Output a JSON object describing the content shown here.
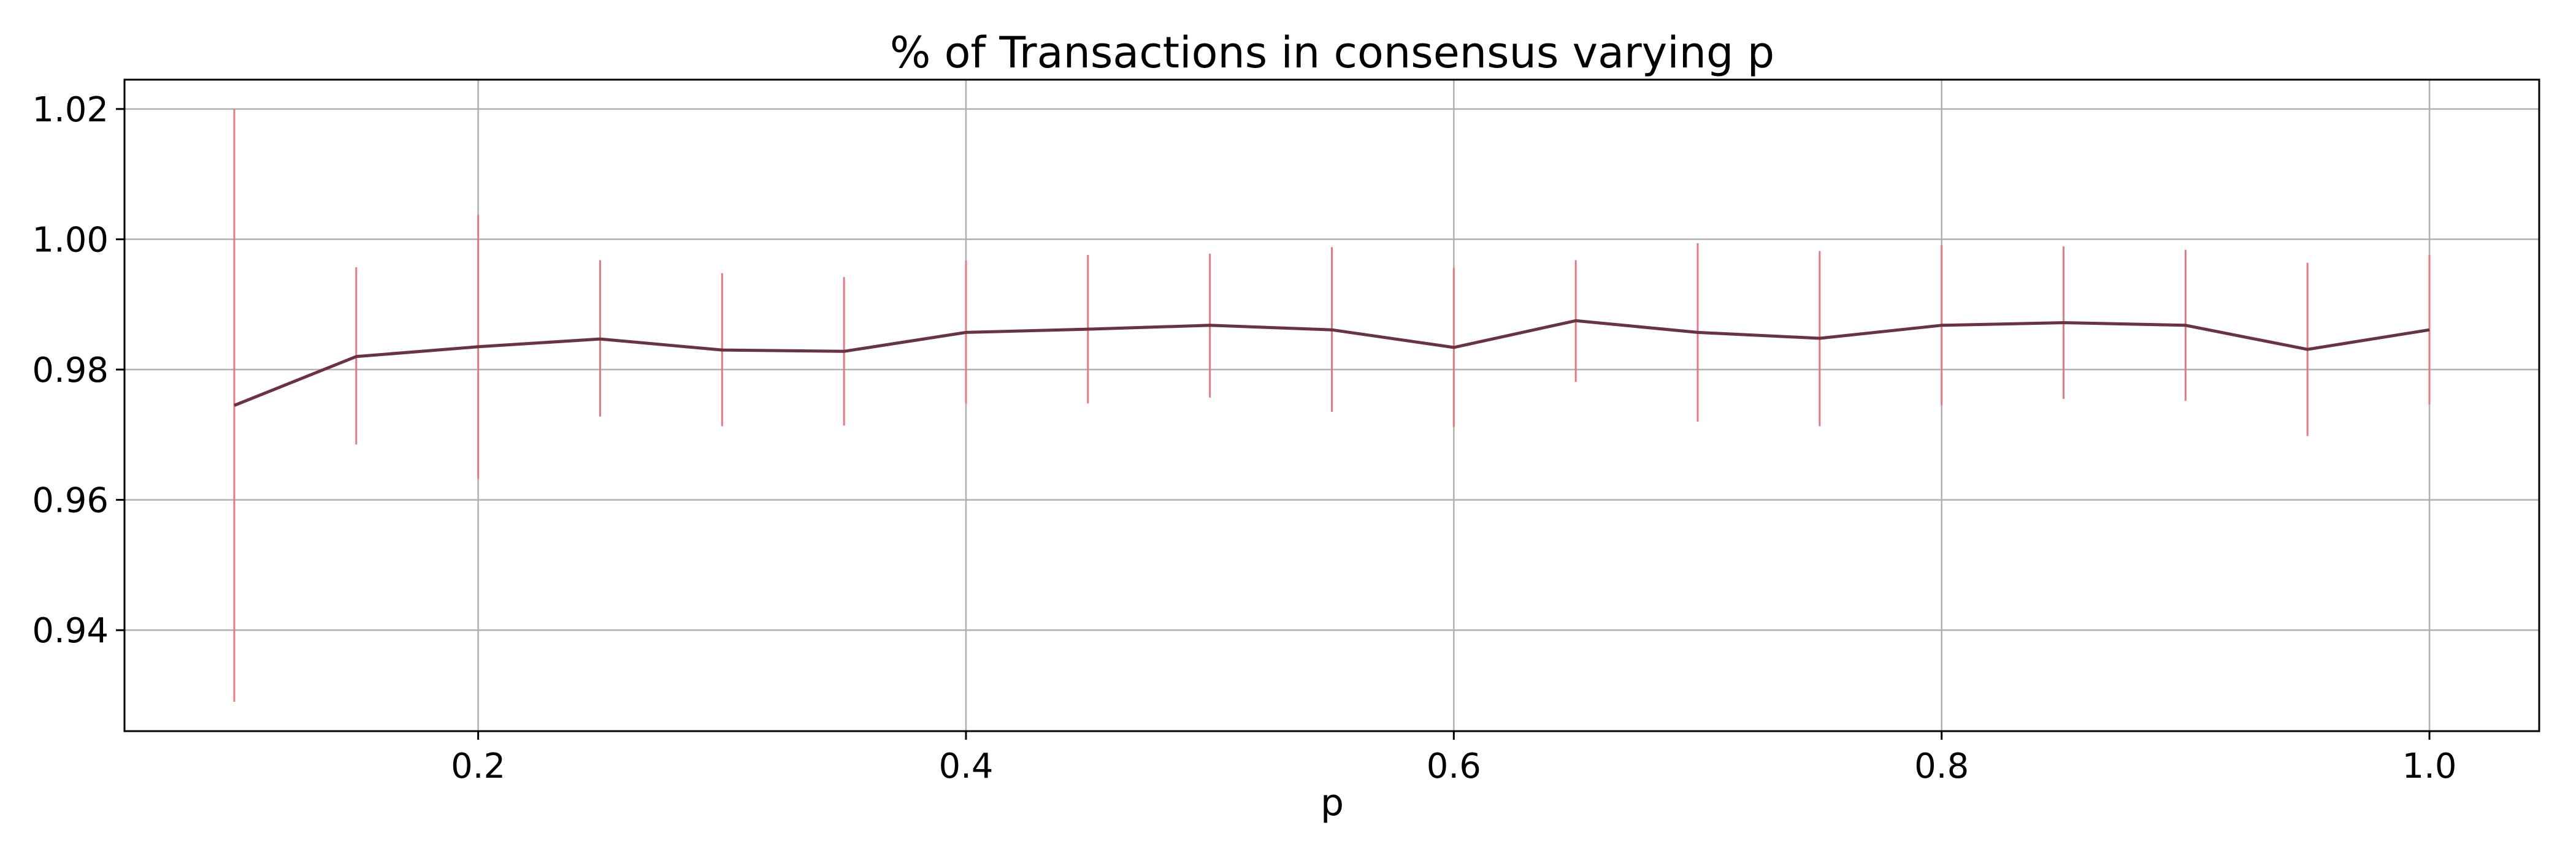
{
  "chart_data": {
    "type": "line",
    "title": "% of Transactions in consensus varying p",
    "xlabel": "p",
    "ylabel": "",
    "xlim": [
      0.055,
      1.045
    ],
    "ylim": [
      0.9245,
      1.0245
    ],
    "xticks": [
      0.2,
      0.4,
      0.6,
      0.8,
      1.0
    ],
    "xtick_labels": [
      "0.2",
      "0.4",
      "0.6",
      "0.8",
      "1.0"
    ],
    "yticks": [
      0.94,
      0.96,
      0.98,
      1.0,
      1.02
    ],
    "ytick_labels": [
      "0.94",
      "0.96",
      "0.98",
      "1.00",
      "1.02"
    ],
    "grid": true,
    "line_color": "#6b3246",
    "errorbar_color": "#e07b83",
    "series": [
      {
        "x": [
          0.1,
          0.15,
          0.2,
          0.25,
          0.3,
          0.35,
          0.4,
          0.45,
          0.5,
          0.55,
          0.6,
          0.65,
          0.7,
          0.75,
          0.8,
          0.85,
          0.9,
          0.95,
          1.0
        ],
        "y": [
          0.9745,
          0.982,
          0.9835,
          0.9847,
          0.983,
          0.9828,
          0.9857,
          0.9862,
          0.9868,
          0.9861,
          0.9834,
          0.9875,
          0.9857,
          0.9848,
          0.9868,
          0.9872,
          0.9868,
          0.9831,
          0.9861
        ],
        "err_low": [
          0.929,
          0.9685,
          0.9632,
          0.9728,
          0.9713,
          0.9714,
          0.9748,
          0.9748,
          0.9757,
          0.9735,
          0.9712,
          0.9781,
          0.972,
          0.9713,
          0.9745,
          0.9755,
          0.9752,
          0.9698,
          0.9746
        ],
        "err_high": [
          1.02,
          0.9957,
          1.0038,
          0.9968,
          0.9948,
          0.9942,
          0.9967,
          0.9976,
          0.9978,
          0.9988,
          0.9956,
          0.9968,
          0.9994,
          0.9982,
          0.9991,
          0.9989,
          0.9984,
          0.9964,
          0.9976
        ]
      }
    ]
  }
}
